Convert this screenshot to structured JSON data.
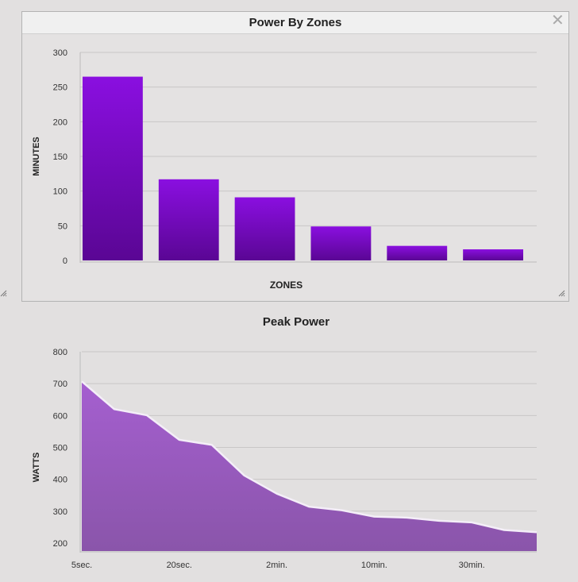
{
  "panel1": {
    "title": "Power By Zones",
    "close_icon": "close-icon"
  },
  "chart2_title": "Peak Power",
  "colors": {
    "bar_top": "#8a0fe0",
    "bar_bottom": "#5a0694",
    "area_top": "#a55fd0",
    "area_bottom": "#8a55aa",
    "grid": "#c8c6c6"
  },
  "chart_data": [
    {
      "type": "bar",
      "title": "Power By Zones",
      "xlabel": "ZONES",
      "ylabel": "MINUTES",
      "categories": [
        "",
        "",
        "",
        "",
        "",
        ""
      ],
      "values": [
        265,
        117,
        91,
        49,
        21,
        16
      ],
      "ylim": [
        0,
        300
      ],
      "yticks": [
        0,
        50,
        100,
        150,
        200,
        250,
        300
      ],
      "grid": true
    },
    {
      "type": "area",
      "title": "Peak Power",
      "xlabel": "",
      "ylabel": "WATTS",
      "x": [
        0,
        1,
        2,
        3,
        4,
        5,
        6,
        7,
        8,
        9,
        10,
        11,
        12,
        13,
        14
      ],
      "xtick_labels": [
        {
          "index": 0,
          "label": "5sec."
        },
        {
          "index": 3,
          "label": "20sec."
        },
        {
          "index": 6,
          "label": "2min."
        },
        {
          "index": 9,
          "label": "10min."
        },
        {
          "index": 12,
          "label": "30min."
        }
      ],
      "values": [
        707,
        620,
        601,
        524,
        508,
        412,
        355,
        314,
        303,
        283,
        280,
        270,
        265,
        241,
        234
      ],
      "ylim": [
        175,
        800
      ],
      "yticks": [
        200,
        300,
        400,
        500,
        600,
        700,
        800
      ],
      "grid": true
    }
  ]
}
